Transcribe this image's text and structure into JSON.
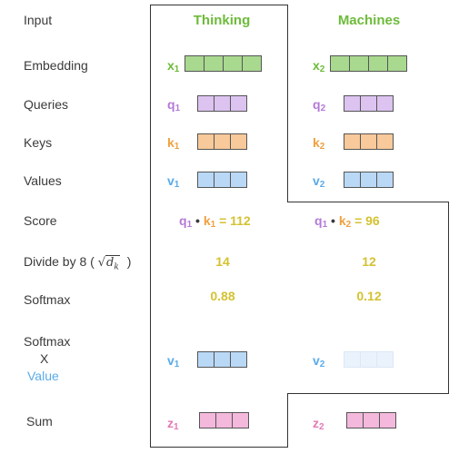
{
  "rows": {
    "input": "Input",
    "embedding": "Embedding",
    "queries": "Queries",
    "keys": "Keys",
    "values": "Values",
    "score": "Score",
    "divide_prefix": "Divide by 8 (",
    "divide_sqrt_var": "d",
    "divide_sqrt_sub": "k",
    "divide_suffix": ")",
    "softmax": "Softmax",
    "softmax_x_line1": "Softmax",
    "softmax_x_line2": "X",
    "softmax_x_line3": "Value",
    "sum": "Sum"
  },
  "columns": [
    {
      "word": "Thinking",
      "x_letter": "x",
      "x_sub": "1",
      "q_letter": "q",
      "q_sub": "1",
      "k_letter": "k",
      "k_sub": "1",
      "v_letter": "v",
      "v_sub": "1",
      "score_q": "q",
      "score_q_sub": "1",
      "score_dot": "•",
      "score_k": "k",
      "score_k_sub": "1",
      "score_eq": "= 112",
      "divided": "14",
      "softmax": "0.88",
      "wv_letter": "v",
      "wv_sub": "1",
      "z_letter": "z",
      "z_sub": "1"
    },
    {
      "word": "Machines",
      "x_letter": "x",
      "x_sub": "2",
      "q_letter": "q",
      "q_sub": "2",
      "k_letter": "k",
      "k_sub": "2",
      "v_letter": "v",
      "v_sub": "2",
      "score_q": "q",
      "score_q_sub": "1",
      "score_dot": "•",
      "score_k": "k",
      "score_k_sub": "2",
      "score_eq": "= 96",
      "divided": "12",
      "softmax": "0.12",
      "wv_letter": "v",
      "wv_sub": "2",
      "z_letter": "z",
      "z_sub": "2"
    }
  ],
  "colors": {
    "embedding": "#a9d88f",
    "queries": "#dcc3f0",
    "keys": "#f8c99a",
    "values": "#b9d8f6",
    "values_faded": "#eaf3fc",
    "sum": "#f3b8dc",
    "outline": "#333333"
  }
}
